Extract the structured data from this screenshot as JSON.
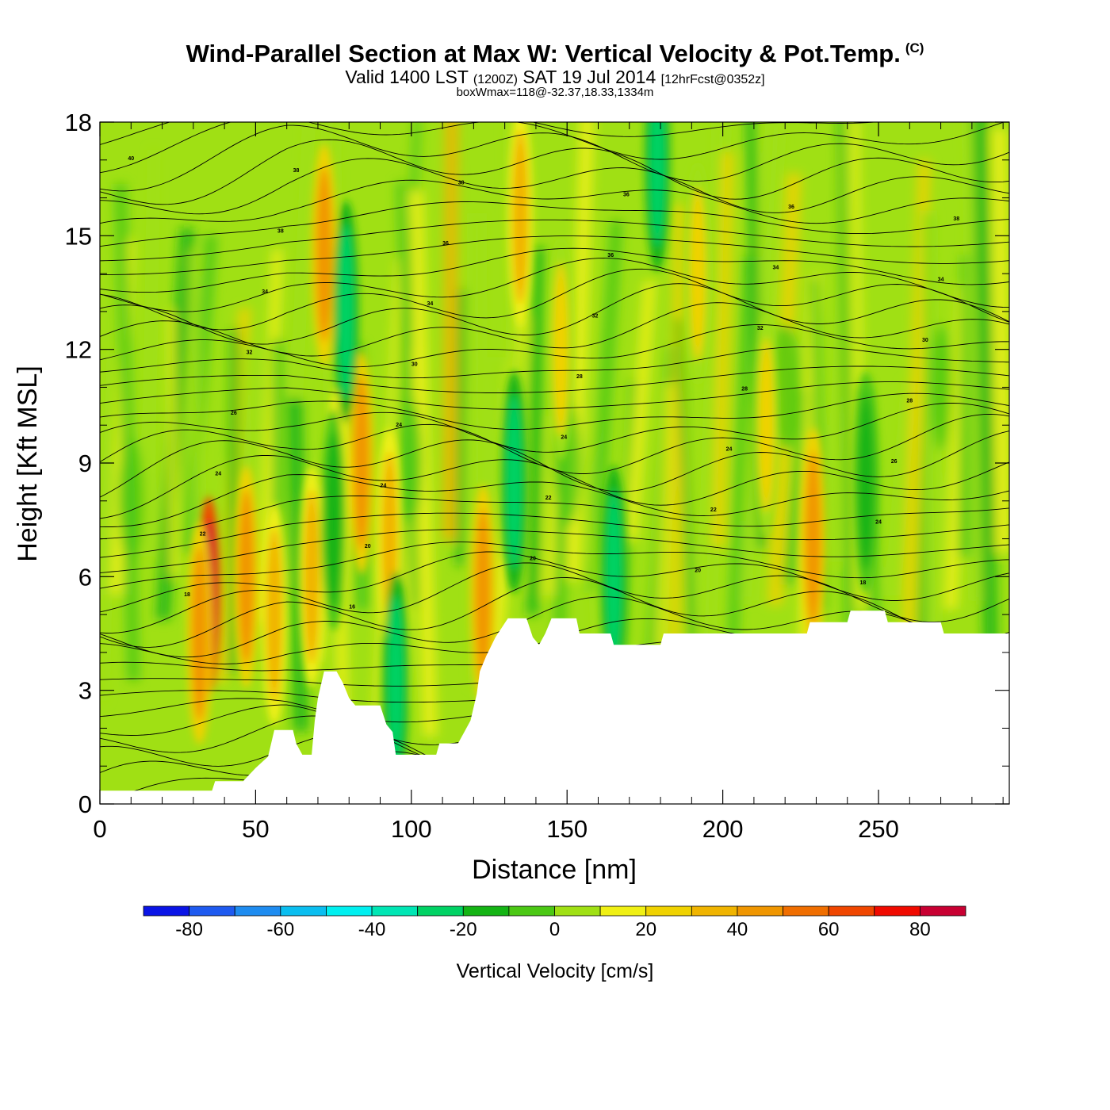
{
  "header": {
    "title": "Wind-Parallel Section at Max W: Vertical Velocity & Pot.Temp.",
    "copyright": "(C)",
    "valid_main": "Valid 1400 LST",
    "valid_utc": "(1200Z)",
    "valid_date": "SAT 19 Jul 2014",
    "forecast": "[12hrFcst@0352z]",
    "boxwmax": "boxWmax=118@-32.37,18.33,1334m"
  },
  "chart_data": {
    "type": "heatmap",
    "title": "Wind-Parallel Section at Max W: Vertical Velocity & Pot.Temp.",
    "xlabel": "Distance [nm]",
    "ylabel": "Height [Kft MSL]",
    "xlim": [
      0,
      292
    ],
    "ylim": [
      0,
      18
    ],
    "x_ticks": [
      0,
      50,
      100,
      150,
      200,
      250
    ],
    "y_ticks": [
      0,
      3,
      6,
      9,
      12,
      15,
      18
    ],
    "colorbar": {
      "label": "Vertical Velocity [cm/s]",
      "boundaries": [
        -90,
        -80,
        -70,
        -60,
        -50,
        -40,
        -30,
        -20,
        -10,
        0,
        10,
        20,
        30,
        40,
        50,
        60,
        70,
        80,
        90
      ],
      "tick_labels": [
        "-80",
        "-60",
        "-40",
        "-20",
        "0",
        "20",
        "40",
        "60",
        "80"
      ],
      "colors": [
        "#0a14e6",
        "#1e5af0",
        "#1e8cf0",
        "#0abef0",
        "#00f0f0",
        "#00e6b4",
        "#00d264",
        "#14b414",
        "#4bc814",
        "#a0e014",
        "#f0f014",
        "#f0d200",
        "#f0b400",
        "#f09600",
        "#f06e00",
        "#f04600",
        "#f00a00",
        "#c80032"
      ]
    },
    "terrain": [
      [
        0,
        0.35
      ],
      [
        6,
        0.35
      ],
      [
        36,
        0.35
      ],
      [
        37,
        0.6
      ],
      [
        46,
        0.6
      ],
      [
        50,
        0.95
      ],
      [
        54,
        1.25
      ],
      [
        56,
        1.95
      ],
      [
        62,
        1.95
      ],
      [
        63,
        1.6
      ],
      [
        65,
        1.3
      ],
      [
        68,
        1.3
      ],
      [
        69,
        2.2
      ],
      [
        70,
        2.8
      ],
      [
        72,
        3.5
      ],
      [
        76,
        3.5
      ],
      [
        78,
        3.2
      ],
      [
        80,
        2.8
      ],
      [
        82,
        2.6
      ],
      [
        90,
        2.6
      ],
      [
        92,
        2.1
      ],
      [
        94,
        1.9
      ],
      [
        95,
        1.3
      ],
      [
        108,
        1.3
      ],
      [
        109,
        1.6
      ],
      [
        115,
        1.6
      ],
      [
        117,
        1.9
      ],
      [
        119,
        2.2
      ],
      [
        121,
        2.9
      ],
      [
        122,
        3.5
      ],
      [
        124,
        3.9
      ],
      [
        127,
        4.4
      ],
      [
        131,
        4.9
      ],
      [
        137,
        4.9
      ],
      [
        139,
        4.4
      ],
      [
        141,
        4.2
      ],
      [
        143,
        4.5
      ],
      [
        145,
        4.9
      ],
      [
        153,
        4.9
      ],
      [
        154,
        4.5
      ],
      [
        164,
        4.5
      ],
      [
        165,
        4.2
      ],
      [
        180,
        4.2
      ],
      [
        181,
        4.5
      ],
      [
        227,
        4.5
      ],
      [
        228,
        4.8
      ],
      [
        240,
        4.8
      ],
      [
        241,
        5.1
      ],
      [
        252,
        5.1
      ],
      [
        253,
        4.8
      ],
      [
        270,
        4.8
      ],
      [
        271,
        4.5
      ],
      [
        292,
        4.5
      ]
    ],
    "theta_contour_labels": [
      "40",
      "38",
      "38",
      "36",
      "36",
      "38",
      "38",
      "36",
      "36",
      "34",
      "34",
      "34",
      "34",
      "32",
      "32",
      "30",
      "32",
      "30",
      "28",
      "28",
      "28",
      "26",
      "24",
      "24",
      "24",
      "26",
      "24",
      "24",
      "22",
      "22",
      "24",
      "22",
      "20",
      "20",
      "20",
      "18",
      "18",
      "16"
    ],
    "updraft_cores": [
      {
        "x": 35,
        "z": 5.5,
        "w": 80
      },
      {
        "x": 32,
        "z": 4.5,
        "w": 40
      },
      {
        "x": 47,
        "z": 6.0,
        "w": 40
      },
      {
        "x": 56,
        "z": 5.0,
        "w": 30
      },
      {
        "x": 68,
        "z": 6.0,
        "w": 30
      },
      {
        "x": 72,
        "z": 14.5,
        "w": 40
      },
      {
        "x": 76,
        "z": 8.0,
        "w": 30
      },
      {
        "x": 84,
        "z": 9.0,
        "w": 40
      },
      {
        "x": 93,
        "z": 7.0,
        "w": 30
      },
      {
        "x": 123,
        "z": 5.5,
        "w": 40
      },
      {
        "x": 135,
        "z": 15.5,
        "w": 30
      },
      {
        "x": 148,
        "z": 12.0,
        "w": 20
      },
      {
        "x": 192,
        "z": 14.0,
        "w": 20
      },
      {
        "x": 214,
        "z": 10.0,
        "w": 20
      },
      {
        "x": 229,
        "z": 7.0,
        "w": 40
      }
    ],
    "downdraft_cores": [
      {
        "x": 75,
        "z": 7.5,
        "w": -20
      },
      {
        "x": 79,
        "z": 13.0,
        "w": -30
      },
      {
        "x": 95,
        "z": 3.2,
        "w": -30
      },
      {
        "x": 133,
        "z": 8.5,
        "w": -30
      },
      {
        "x": 165,
        "z": 6.0,
        "w": -30
      },
      {
        "x": 179,
        "z": 17.0,
        "w": -30
      },
      {
        "x": 246,
        "z": 8.5,
        "w": -20
      }
    ]
  }
}
